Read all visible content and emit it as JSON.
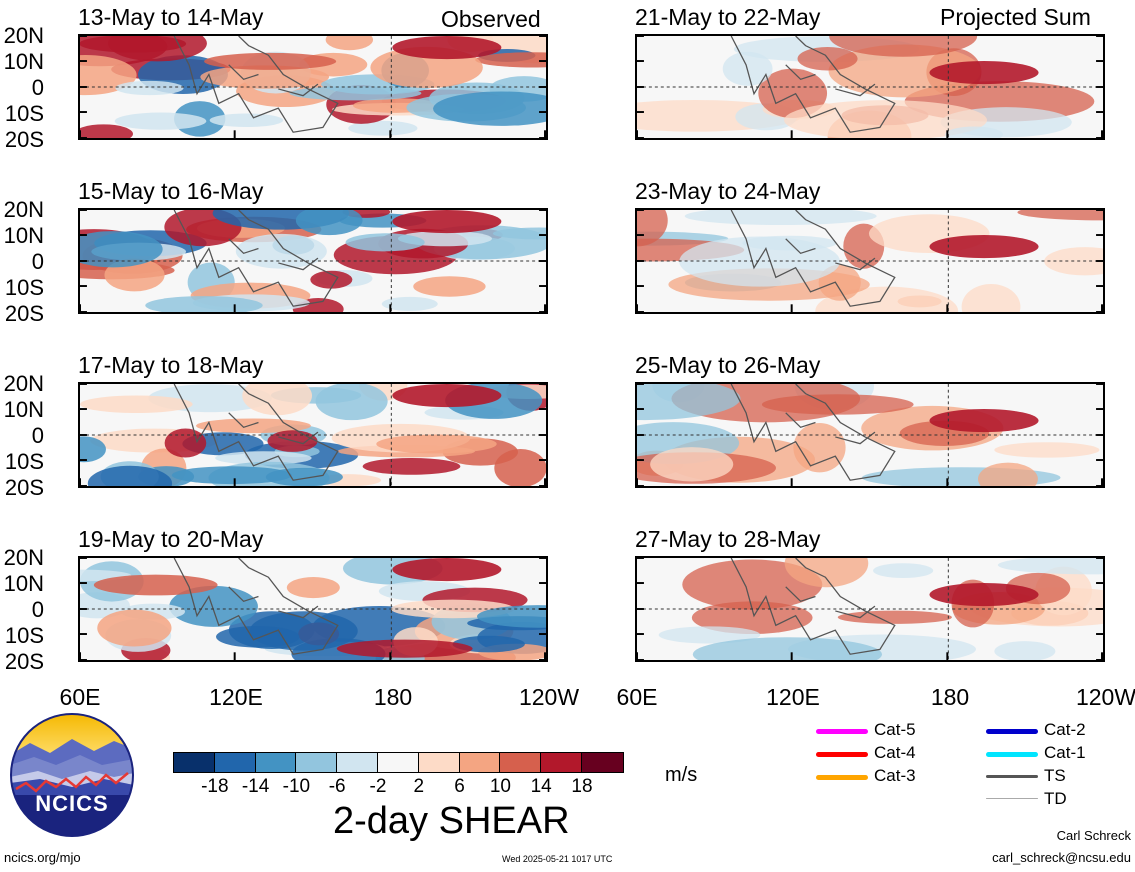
{
  "header": {
    "observed_label": "Observed",
    "projected_label": "Projected Sum"
  },
  "panels": [
    {
      "title": "13-May to 14-May"
    },
    {
      "title": "15-May to 16-May"
    },
    {
      "title": "17-May to 18-May"
    },
    {
      "title": "19-May to 20-May"
    },
    {
      "title": "21-May to 22-May"
    },
    {
      "title": "23-May to 24-May"
    },
    {
      "title": "25-May to 26-May"
    },
    {
      "title": "27-May to 28-May"
    }
  ],
  "lat_labels": [
    "20N",
    "10N",
    "0",
    "10S",
    "20S"
  ],
  "lon_labels": [
    "60E",
    "120E",
    "180",
    "120W"
  ],
  "colorbar": {
    "colors": [
      "#08306b",
      "#2166ac",
      "#4393c3",
      "#92c5de",
      "#d1e5f0",
      "#f7f7f7",
      "#fddbc7",
      "#f4a582",
      "#d6604d",
      "#b2182b",
      "#67001f"
    ],
    "tick_labels": [
      "-18",
      "-14",
      "-10",
      "-6",
      "-2",
      "2",
      "6",
      "10",
      "14",
      "18"
    ],
    "units": "m/s",
    "title": "2-day SHEAR"
  },
  "legend": [
    {
      "label": "Cat-5",
      "color": "#ff00ff"
    },
    {
      "label": "Cat-4",
      "color": "#ff0000"
    },
    {
      "label": "Cat-3",
      "color": "#ffa500"
    },
    {
      "label": "Cat-2",
      "color": "#0000cc"
    },
    {
      "label": "Cat-1",
      "color": "#00e5ff"
    },
    {
      "label": "TS",
      "color": "#555555"
    },
    {
      "label": "TD",
      "color": "#aaaaaa"
    }
  ],
  "logo": {
    "text": "NCICS"
  },
  "footer": {
    "site": "ncics.org/mjo",
    "timestamp": "Wed 2025-05-21 1017 UTC",
    "author": "Carl Schreck",
    "email": "carl_schreck@ncsu.edu"
  }
}
